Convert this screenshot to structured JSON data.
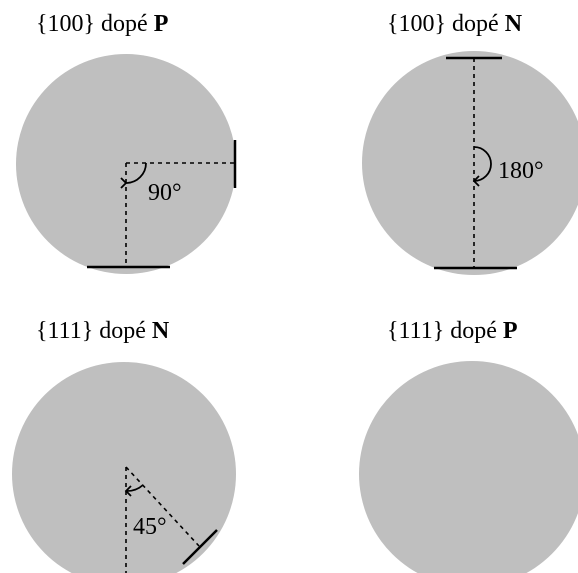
{
  "wafers": [
    {
      "orientation": "{100}",
      "doping_word": "dopé",
      "dopant": "P",
      "angle_label": "90°",
      "angle_deg": 90,
      "flats": [
        "primary",
        "secondary"
      ]
    },
    {
      "orientation": "{100}",
      "doping_word": "dopé",
      "dopant": "N",
      "angle_label": "180°",
      "angle_deg": 180,
      "flats": [
        "primary",
        "secondary"
      ]
    },
    {
      "orientation": "{111}",
      "doping_word": "dopé",
      "dopant": "N",
      "angle_label": "45°",
      "angle_deg": 45,
      "flats": [
        "primary",
        "secondary"
      ]
    },
    {
      "orientation": "{111}",
      "doping_word": "dopé",
      "dopant": "P",
      "angle_label": "",
      "angle_deg": null,
      "flats": [
        "primary"
      ]
    }
  ]
}
